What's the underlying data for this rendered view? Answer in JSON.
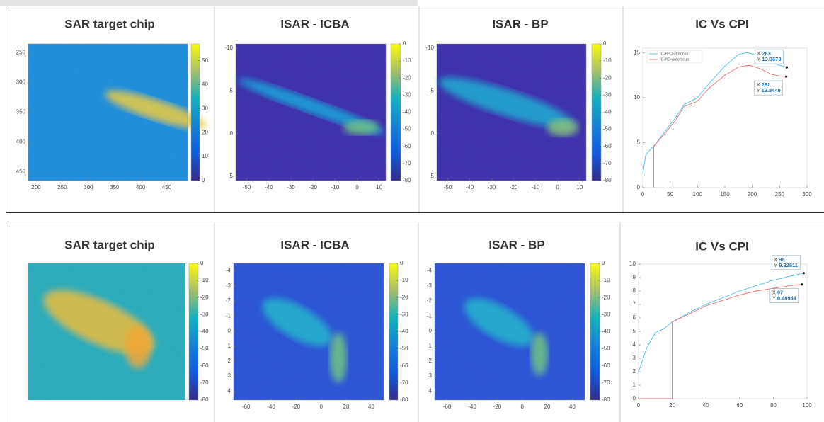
{
  "chart_data": [
    {
      "type": "image",
      "title": "SAR target chip",
      "colormap": "parula",
      "xlim": [
        185,
        490
      ],
      "xticks": [
        200,
        250,
        300,
        350,
        400,
        450
      ],
      "ylim": [
        235,
        465
      ],
      "yticks": [
        250,
        300,
        350,
        400,
        450
      ],
      "y_reversed": true,
      "clim": [
        0,
        57
      ],
      "cticks": [
        0,
        10,
        20,
        30,
        40,
        50
      ]
    },
    {
      "type": "image",
      "title": "ISAR - ICBA",
      "colormap": "parula",
      "xlim": [
        -55,
        13
      ],
      "xticks": [
        -50,
        -40,
        -30,
        -20,
        -10,
        0,
        10
      ],
      "ylim": [
        -10.5,
        5.5
      ],
      "yticks": [
        -10,
        -5,
        0,
        5
      ],
      "y_reversed": true,
      "clim": [
        -80,
        0
      ],
      "cticks": [
        0,
        -10,
        -20,
        -30,
        -40,
        -50,
        -60,
        -70,
        -80
      ]
    },
    {
      "type": "image",
      "title": "ISAR - BP",
      "colormap": "parula",
      "xlim": [
        -55,
        13
      ],
      "xticks": [
        -50,
        -40,
        -30,
        -20,
        -10,
        0,
        10
      ],
      "ylim": [
        -10.5,
        5.5
      ],
      "yticks": [
        -10,
        -5,
        0,
        5
      ],
      "y_reversed": true,
      "clim": [
        -80,
        0
      ],
      "cticks": [
        0,
        -10,
        -20,
        -30,
        -40,
        -50,
        -60,
        -70,
        -80
      ]
    },
    {
      "type": "line",
      "title": "IC Vs CPI",
      "legend": "upper left",
      "xlim": [
        0,
        300
      ],
      "xticks": [
        0,
        50,
        100,
        150,
        200,
        250,
        300
      ],
      "ylim": [
        0,
        15.5
      ],
      "yticks": [
        0,
        5,
        10,
        15
      ],
      "series": [
        {
          "name": "IC-BP-autofocus",
          "color": "#4dbeee",
          "x": [
            0,
            5,
            10,
            20,
            40,
            60,
            75,
            100,
            120,
            150,
            175,
            190,
            210,
            230,
            250,
            263
          ],
          "values": [
            1.5,
            3.5,
            4,
            4.6,
            6.2,
            7.8,
            9.2,
            10,
            11.5,
            13.5,
            14.8,
            15,
            14.7,
            14,
            13.6,
            13.3673
          ]
        },
        {
          "name": "IC-RD-autofocus",
          "color": "#f07070",
          "x": [
            20,
            20,
            40,
            60,
            75,
            100,
            120,
            150,
            175,
            195,
            215,
            235,
            250,
            262
          ],
          "values": [
            0,
            4.6,
            6,
            7.5,
            9,
            9.6,
            11,
            12.5,
            13.4,
            13.6,
            13.2,
            12.6,
            12.4,
            12.3449
          ]
        }
      ],
      "datatips": [
        {
          "x_label": "X",
          "x": 263,
          "y_label": "Y",
          "y": 13.3673
        },
        {
          "x_label": "X",
          "x": 262,
          "y_label": "Y",
          "y": 12.3449
        }
      ]
    },
    {
      "type": "image",
      "title": "SAR target chip",
      "colormap": "parula",
      "clim": [
        -80,
        0
      ],
      "cticks": [
        0,
        -10,
        -20,
        -30,
        -40,
        -50,
        -60,
        -70,
        -80
      ]
    },
    {
      "type": "image",
      "title": "ISAR - ICBA",
      "colormap": "parula",
      "xlim": [
        -70,
        50
      ],
      "xticks": [
        -60,
        -40,
        -20,
        0,
        20,
        40
      ],
      "ylim": [
        -4.5,
        4.6
      ],
      "yticks": [
        -4,
        -3,
        -2,
        -1,
        0,
        1,
        2,
        3,
        4
      ],
      "y_reversed": true,
      "clim": [
        -80,
        0
      ],
      "cticks": [
        0,
        -10,
        -20,
        -30,
        -40,
        -50,
        -60,
        -70,
        -80
      ]
    },
    {
      "type": "image",
      "title": "ISAR - BP",
      "colormap": "parula",
      "xlim": [
        -70,
        50
      ],
      "xticks": [
        -60,
        -40,
        -20,
        0,
        20,
        40
      ],
      "ylim": [
        -4.5,
        4.6
      ],
      "yticks": [
        -4,
        -3,
        -2,
        -1,
        0,
        1,
        2,
        3,
        4
      ],
      "y_reversed": true,
      "clim": [
        -80,
        0
      ],
      "cticks": [
        0,
        -10,
        -20,
        -30,
        -40,
        -50,
        -60,
        -70,
        -80
      ]
    },
    {
      "type": "line",
      "title": "IC Vs CPI",
      "xlim": [
        0,
        100
      ],
      "xticks": [
        0,
        20,
        40,
        60,
        80,
        100
      ],
      "ylim": [
        0,
        10
      ],
      "yticks": [
        0,
        1,
        2,
        3,
        4,
        5,
        6,
        7,
        8,
        9,
        10
      ],
      "series": [
        {
          "color": "#4dbeee",
          "x": [
            0,
            5,
            10,
            15,
            20,
            30,
            40,
            50,
            60,
            70,
            80,
            90,
            98
          ],
          "values": [
            2,
            3.8,
            4.9,
            5.2,
            5.7,
            6.4,
            7,
            7.5,
            8,
            8.4,
            8.8,
            9.1,
            9.32811
          ]
        },
        {
          "color": "#f07070",
          "x": [
            0,
            20,
            20,
            30,
            40,
            50,
            60,
            70,
            80,
            90,
            97
          ],
          "values": [
            0,
            0,
            5.7,
            6.3,
            6.9,
            7.3,
            7.7,
            8,
            8.2,
            8.4,
            8.48944
          ]
        }
      ],
      "datatips": [
        {
          "x_label": "X",
          "x": 98,
          "y_label": "Y",
          "y": 9.32811
        },
        {
          "x_label": "X",
          "x": 97,
          "y_label": "Y",
          "y": 8.48944
        }
      ]
    }
  ]
}
